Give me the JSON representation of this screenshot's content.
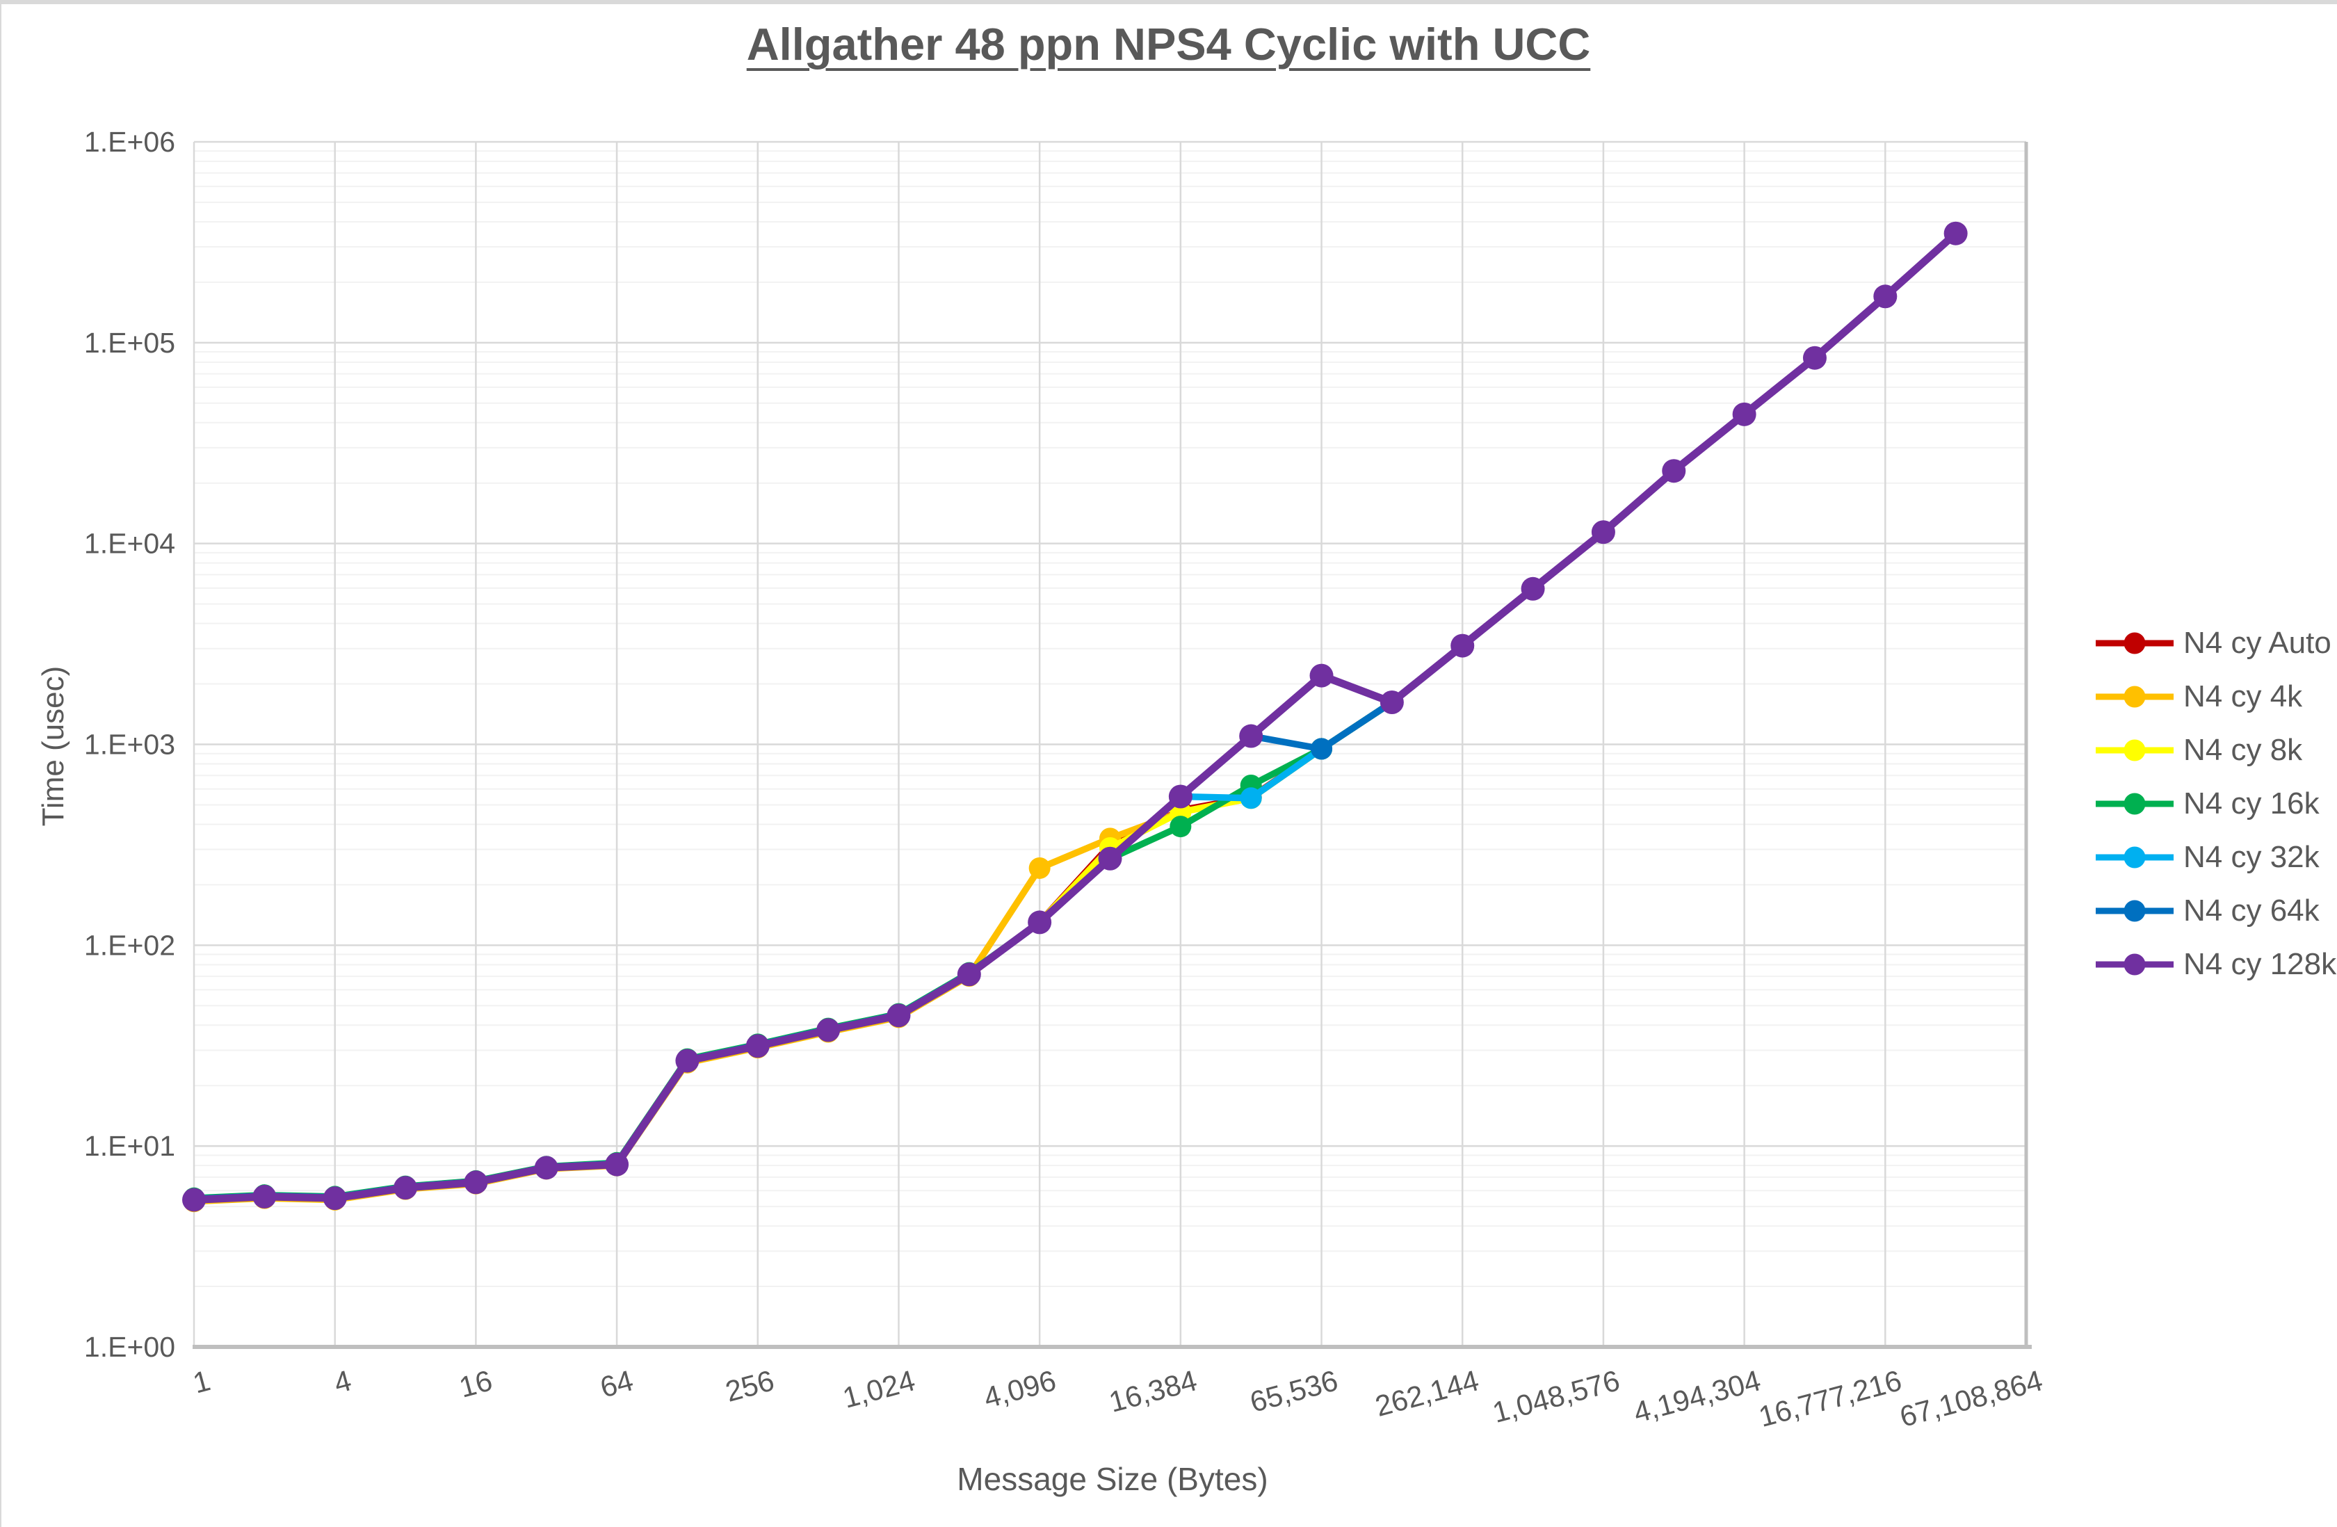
{
  "page": {
    "background": "#ffffff",
    "top_strip_color": "#d9d9d9"
  },
  "chart_data": {
    "type": "line",
    "title": "Allgather 48 ppn NPS4 Cyclic with UCC",
    "xlabel": "Message Size (Bytes)",
    "ylabel": "Time (usec)",
    "x_scale": "log2",
    "y_scale": "log10",
    "xlim": [
      1,
      67108864
    ],
    "ylim": [
      1,
      1000000
    ],
    "grid": "on",
    "legend_position": "right",
    "text_color": "#595959",
    "major_grid_color": "#d9d9d9",
    "minor_grid_color": "#f2f2f2",
    "axis_line_color": "#bfbfbf",
    "x_ticks": [
      "1",
      "4",
      "16",
      "64",
      "256",
      "1,024",
      "4,096",
      "16,384",
      "65,536",
      "262,144",
      "1,048,576",
      "4,194,304",
      "16,777,216",
      "67,108,864"
    ],
    "y_ticks": [
      "1.E+00",
      "1.E+01",
      "1.E+02",
      "1.E+03",
      "1.E+04",
      "1.E+05",
      "1.E+06"
    ],
    "sizes": [
      1,
      2,
      4,
      8,
      16,
      32,
      64,
      128,
      256,
      512,
      1024,
      2048,
      4096,
      8192,
      16384,
      32768,
      65536,
      131072,
      262144,
      524288,
      1048576,
      2097152,
      4194304,
      8388608,
      16777216,
      33554432
    ],
    "series": [
      {
        "name": "N4 cy Auto",
        "color": "#C00000",
        "values": [
          5.35,
          5.55,
          5.45,
          6.15,
          6.55,
          7.75,
          8.05,
          26.3,
          31.2,
          37.4,
          44.3,
          71.0,
          130,
          315,
          470,
          545,
          950,
          1620,
          3100,
          5950,
          11400,
          23000,
          44000,
          84000,
          170000,
          350000
        ]
      },
      {
        "name": "N4 cy 4k",
        "color": "#FFC000",
        "values": [
          5.3,
          5.5,
          5.4,
          6.1,
          6.5,
          7.7,
          8.0,
          26.0,
          30.9,
          37.0,
          43.8,
          70.3,
          242,
          340,
          460,
          540,
          950,
          1620,
          3100,
          5950,
          11400,
          23000,
          44000,
          84000,
          170000,
          350000
        ]
      },
      {
        "name": "N4 cy 8k",
        "color": "#FFFF00",
        "values": [
          5.4,
          5.6,
          5.5,
          6.2,
          6.6,
          7.8,
          8.1,
          26.6,
          31.5,
          37.8,
          44.7,
          71.6,
          130,
          305,
          460,
          540,
          950,
          1620,
          3100,
          5950,
          11400,
          23000,
          44000,
          84000,
          170000,
          350000
        ]
      },
      {
        "name": "N4 cy 16k",
        "color": "#00B050",
        "values": [
          5.5,
          5.7,
          5.6,
          6.3,
          6.7,
          7.9,
          8.25,
          27.1,
          32.1,
          38.5,
          45.5,
          72.8,
          130,
          270,
          390,
          625,
          950,
          1620,
          3100,
          5950,
          11400,
          23000,
          44000,
          84000,
          170000,
          350000
        ]
      },
      {
        "name": "N4 cy 32k",
        "color": "#00B0F0",
        "values": [
          5.45,
          5.65,
          5.55,
          6.25,
          6.65,
          7.85,
          8.17,
          26.8,
          31.8,
          38.1,
          45.1,
          72.2,
          130,
          270,
          550,
          540,
          950,
          1620,
          3100,
          5950,
          11400,
          23000,
          44000,
          84000,
          170000,
          350000
        ]
      },
      {
        "name": "N4 cy 64k",
        "color": "#0070C0",
        "values": [
          5.45,
          5.65,
          5.55,
          6.25,
          6.65,
          7.85,
          8.17,
          26.8,
          31.8,
          38.1,
          45.1,
          72.2,
          130,
          270,
          550,
          1100,
          950,
          1620,
          3100,
          5950,
          11400,
          23000,
          44000,
          84000,
          170000,
          350000
        ]
      },
      {
        "name": "N4 cy 128k",
        "color": "#7030A0",
        "values": [
          5.4,
          5.6,
          5.5,
          6.2,
          6.6,
          7.8,
          8.1,
          26.6,
          31.5,
          37.8,
          44.7,
          71.6,
          130,
          270,
          550,
          1100,
          2200,
          1620,
          3100,
          5950,
          11400,
          23000,
          44000,
          84000,
          170000,
          350000
        ]
      }
    ]
  }
}
